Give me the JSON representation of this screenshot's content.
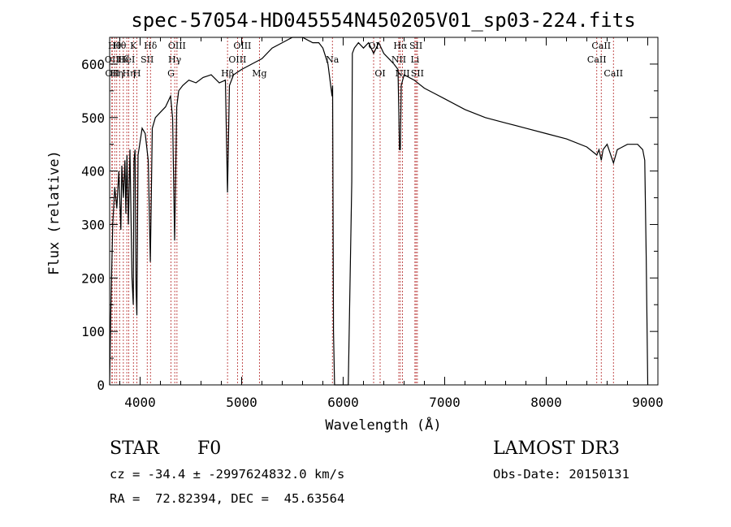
{
  "chart_data": {
    "type": "line",
    "title": "spec-57054-HD045554N450205V01_sp03-224.fits",
    "xlabel": "Wavelength (Å)",
    "ylabel": "Flux (relative)",
    "xlim": [
      3700,
      9100
    ],
    "ylim": [
      0,
      650
    ],
    "xticks": [
      4000,
      5000,
      6000,
      7000,
      8000,
      9000
    ],
    "yticks": [
      0,
      100,
      200,
      300,
      400,
      500,
      600
    ],
    "grid": false,
    "line_color": "#000000",
    "marker_color": "#b22222",
    "series": [
      {
        "x": [
          3700,
          3710,
          3730,
          3750,
          3770,
          3790,
          3810,
          3820,
          3835,
          3850,
          3860,
          3870,
          3885,
          3900,
          3920,
          3933,
          3940,
          3950,
          3960,
          3968,
          3980,
          4000,
          4020,
          4050,
          4080,
          4101,
          4120,
          4150,
          4200,
          4250,
          4300,
          4320,
          4340,
          4361,
          4380,
          4420,
          4480,
          4550,
          4620,
          4700,
          4780,
          4840,
          4861,
          4880,
          4920,
          5000,
          5100,
          5200,
          5300,
          5400,
          5500,
          5600,
          5700,
          5760,
          5800,
          5850,
          5890,
          5896,
          5905,
          5915,
          5930,
          5950,
          6050,
          6085,
          6090,
          6110,
          6150,
          6200,
          6250,
          6300,
          6350,
          6400,
          6450,
          6500,
          6540,
          6555,
          6563,
          6572,
          6600,
          6700,
          6800,
          6900,
          7000,
          7200,
          7400,
          7600,
          7800,
          8000,
          8200,
          8400,
          8498,
          8520,
          8542,
          8560,
          8600,
          8662,
          8700,
          8800,
          8900,
          8950,
          8970,
          8985,
          9000
        ],
        "y": [
          0,
          130,
          300,
          370,
          330,
          400,
          290,
          410,
          350,
          420,
          320,
          430,
          300,
          440,
          200,
          150,
          420,
          440,
          180,
          130,
          430,
          455,
          480,
          470,
          420,
          230,
          480,
          500,
          510,
          520,
          540,
          500,
          270,
          520,
          550,
          560,
          570,
          565,
          575,
          580,
          565,
          570,
          360,
          560,
          580,
          590,
          600,
          610,
          630,
          640,
          650,
          650,
          640,
          640,
          630,
          600,
          540,
          560,
          100,
          0,
          0,
          0,
          0,
          380,
          620,
          630,
          640,
          630,
          640,
          620,
          640,
          620,
          610,
          600,
          590,
          440,
          440,
          560,
          580,
          570,
          555,
          545,
          535,
          515,
          500,
          490,
          480,
          470,
          460,
          445,
          430,
          440,
          420,
          440,
          450,
          415,
          440,
          450,
          450,
          440,
          420,
          240,
          0
        ]
      }
    ],
    "line_markers": [
      {
        "x": 3722,
        "labels": [
          "OII"
        ],
        "row": 2
      },
      {
        "x": 3726,
        "labels": [
          "OII"
        ],
        "row": 3
      },
      {
        "x": 3750,
        "labels": [
          "Hθ"
        ],
        "row": 1
      },
      {
        "x": 3770,
        "labels": [
          "Hη"
        ],
        "row": 3
      },
      {
        "x": 3798,
        "labels": [
          "Hθ"
        ],
        "row": 1
      },
      {
        "x": 3835,
        "labels": [
          "Hζ"
        ],
        "row": 2
      },
      {
        "x": 3869,
        "labels": [
          "HeI"
        ],
        "row": 2
      },
      {
        "x": 3889,
        "labels": [
          "Hη"
        ],
        "row": 3
      },
      {
        "x": 3934,
        "labels": [
          "K"
        ],
        "row": 1
      },
      {
        "x": 3969,
        "labels": [
          "H"
        ],
        "row": 3
      },
      {
        "x": 4070,
        "labels": [
          "SII"
        ],
        "row": 2
      },
      {
        "x": 4102,
        "labels": [
          "Hδ"
        ],
        "row": 1
      },
      {
        "x": 4304,
        "labels": [
          "G"
        ],
        "row": 3
      },
      {
        "x": 4341,
        "labels": [
          "Hγ"
        ],
        "row": 2
      },
      {
        "x": 4363,
        "labels": [
          "OIII"
        ],
        "row": 1
      },
      {
        "x": 4861,
        "labels": [
          "Hβ"
        ],
        "row": 3
      },
      {
        "x": 4959,
        "labels": [
          "OIII"
        ],
        "row": 2
      },
      {
        "x": 5007,
        "labels": [
          "OIII"
        ],
        "row": 1
      },
      {
        "x": 5175,
        "labels": [
          "Mg"
        ],
        "row": 3
      },
      {
        "x": 5894,
        "labels": [
          "Na"
        ],
        "row": 2
      },
      {
        "x": 6300,
        "labels": [
          "OI"
        ],
        "row": 1
      },
      {
        "x": 6364,
        "labels": [
          "OI"
        ],
        "row": 3
      },
      {
        "x": 6548,
        "labels": [
          "NII"
        ],
        "row": 2
      },
      {
        "x": 6563,
        "labels": [
          "Hα"
        ],
        "row": 1
      },
      {
        "x": 6584,
        "labels": [
          "NII"
        ],
        "row": 3
      },
      {
        "x": 6707,
        "labels": [
          "Li"
        ],
        "row": 2
      },
      {
        "x": 6717,
        "labels": [
          "SII"
        ],
        "row": 1
      },
      {
        "x": 6731,
        "labels": [
          "SII"
        ],
        "row": 3
      },
      {
        "x": 8498,
        "labels": [
          "CaII"
        ],
        "row": 2
      },
      {
        "x": 8542,
        "labels": [
          "CaII"
        ],
        "row": 1
      },
      {
        "x": 8662,
        "labels": [
          "CaII"
        ],
        "row": 3
      }
    ]
  },
  "info": {
    "object_class": "STAR",
    "subclass": "F0",
    "survey": "LAMOST DR3",
    "velocity": "cz = -34.4 ± -2997624832.0 km/s",
    "obs_date": "Obs-Date: 20150131",
    "coords": "RA =  72.82394, DEC =  45.63564"
  }
}
